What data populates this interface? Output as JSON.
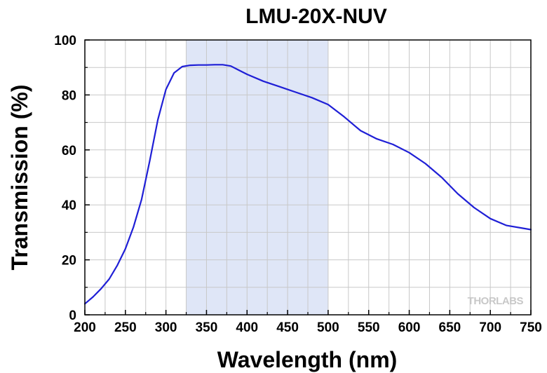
{
  "chart_data": {
    "type": "line",
    "title": "LMU-20X-NUV",
    "xlabel": "Wavelength (nm)",
    "ylabel": "Transmission (%)",
    "xlim": [
      200,
      750
    ],
    "ylim": [
      0,
      100
    ],
    "xticks": [
      "200",
      "250",
      "300",
      "350",
      "400",
      "450",
      "500",
      "550",
      "600",
      "650",
      "700",
      "750"
    ],
    "yticks": [
      "0",
      "20",
      "40",
      "60",
      "80",
      "100"
    ],
    "grid": true,
    "legend": "none",
    "highlight_band": {
      "x_range": [
        325,
        500
      ],
      "color": "#dfe6f7"
    },
    "series": [
      {
        "color": "#1f1fd6",
        "x": [
          200,
          210,
          220,
          230,
          240,
          250,
          260,
          270,
          280,
          290,
          300,
          310,
          320,
          330,
          340,
          350,
          360,
          370,
          380,
          390,
          400,
          420,
          440,
          460,
          480,
          500,
          520,
          540,
          560,
          580,
          600,
          620,
          640,
          660,
          680,
          700,
          720,
          740,
          750
        ],
        "y": [
          4,
          6.5,
          9.5,
          13,
          18,
          24,
          32,
          42,
          56,
          71,
          82,
          88,
          90.3,
          90.8,
          90.9,
          90.9,
          91,
          91,
          90.5,
          89,
          87.5,
          85,
          83,
          81,
          79,
          76.5,
          72,
          67,
          64,
          62,
          59,
          55,
          50,
          44,
          39,
          35,
          32.5,
          31.5,
          31
        ]
      }
    ]
  },
  "watermark": "THORLABS"
}
